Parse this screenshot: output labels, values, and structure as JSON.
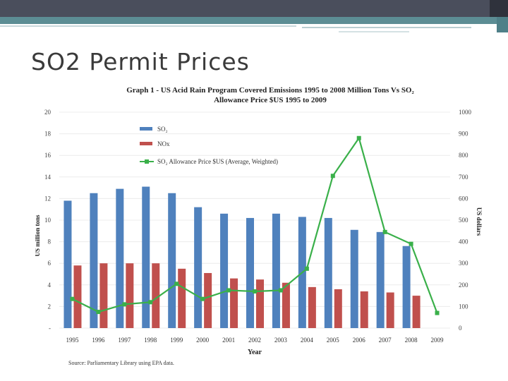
{
  "slide": {
    "title": "SO2 Permit Prices"
  },
  "chart_data": {
    "type": "bar",
    "title_line1": "Graph 1 - US Acid Rain Program Covered Emissions 1995  to 2008 Million Tons Vs SO₂",
    "title_line2": "Allowance Price $US 1995 to 2009",
    "xlabel": "Year",
    "ylabel": "US million tons",
    "y2label": "US dollars",
    "source": "Source: Parliamentary Library using EPA data.",
    "categories": [
      "1995",
      "1996",
      "1997",
      "1998",
      "1999",
      "2000",
      "2001",
      "2002",
      "2003",
      "2004",
      "2005",
      "2006",
      "2007",
      "2008",
      "2009"
    ],
    "ylim": [
      0,
      20
    ],
    "y2lim": [
      0,
      1000
    ],
    "y_ticks": [
      "-",
      "2",
      "4",
      "6",
      "8",
      "10",
      "12",
      "14",
      "16",
      "18",
      "20"
    ],
    "y2_ticks": [
      "0",
      "100",
      "200",
      "300",
      "400",
      "500",
      "600",
      "700",
      "800",
      "900",
      "1000"
    ],
    "series": [
      {
        "name": "SO₂",
        "axis": "left",
        "kind": "bar",
        "color": "#4f81bd",
        "values": [
          11.8,
          12.5,
          12.9,
          13.1,
          12.5,
          11.2,
          10.6,
          10.2,
          10.6,
          10.3,
          10.2,
          9.1,
          8.9,
          7.6,
          null
        ]
      },
      {
        "name": "NOx",
        "axis": "left",
        "kind": "bar",
        "color": "#c0504d",
        "values": [
          5.8,
          6.0,
          6.0,
          6.0,
          5.5,
          5.1,
          4.6,
          4.5,
          4.2,
          3.8,
          3.6,
          3.4,
          3.3,
          3.0,
          null
        ]
      },
      {
        "name": "SO₂ Allowance Price $US (Average, Weighted)",
        "axis": "right",
        "kind": "line",
        "color": "#3ab04a",
        "values": [
          135,
          75,
          110,
          120,
          205,
          135,
          175,
          170,
          175,
          275,
          705,
          880,
          445,
          390,
          70
        ]
      }
    ],
    "legend_position": "top-left"
  }
}
